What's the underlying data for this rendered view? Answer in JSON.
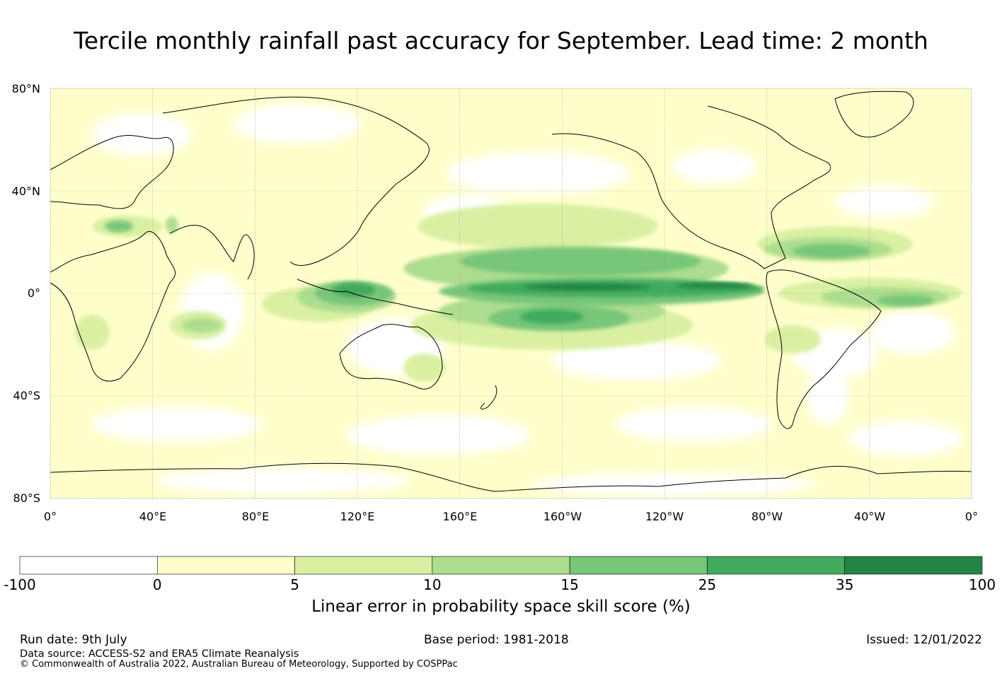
{
  "title": "Tercile monthly rainfall past accuracy for September. Lead time: 2 month",
  "map": {
    "lat_labels": [
      "80°N",
      "40°N",
      "0°",
      "40°S",
      "80°S"
    ],
    "lon_labels": [
      "0°",
      "40°E",
      "80°E",
      "120°E",
      "160°E",
      "160°W",
      "120°W",
      "80°W",
      "40°W",
      "0°"
    ],
    "land_outline_color": "#000000",
    "grid_color": "#9a9a9a"
  },
  "colorbar": {
    "title": "Linear error in probability space skill score (%)",
    "ticks": [
      "-100",
      "0",
      "5",
      "10",
      "15",
      "25",
      "35",
      "100"
    ],
    "colors": [
      "#ffffff",
      "#ffffcc",
      "#d9f0a3",
      "#addd8e",
      "#78c679",
      "#41ab5d",
      "#238443"
    ]
  },
  "footer": {
    "run_date": "Run date: 9th July",
    "base_period": "Base period: 1981-2018",
    "issued": "Issued: 12/01/2022",
    "data_source": "Data source: ACCESS-S2 and ERA5 Climate Reanalysis",
    "copyright": "© Commonwealth of Australia 2022, Australian Bureau of Meteorology, Supported by COSPPac"
  }
}
